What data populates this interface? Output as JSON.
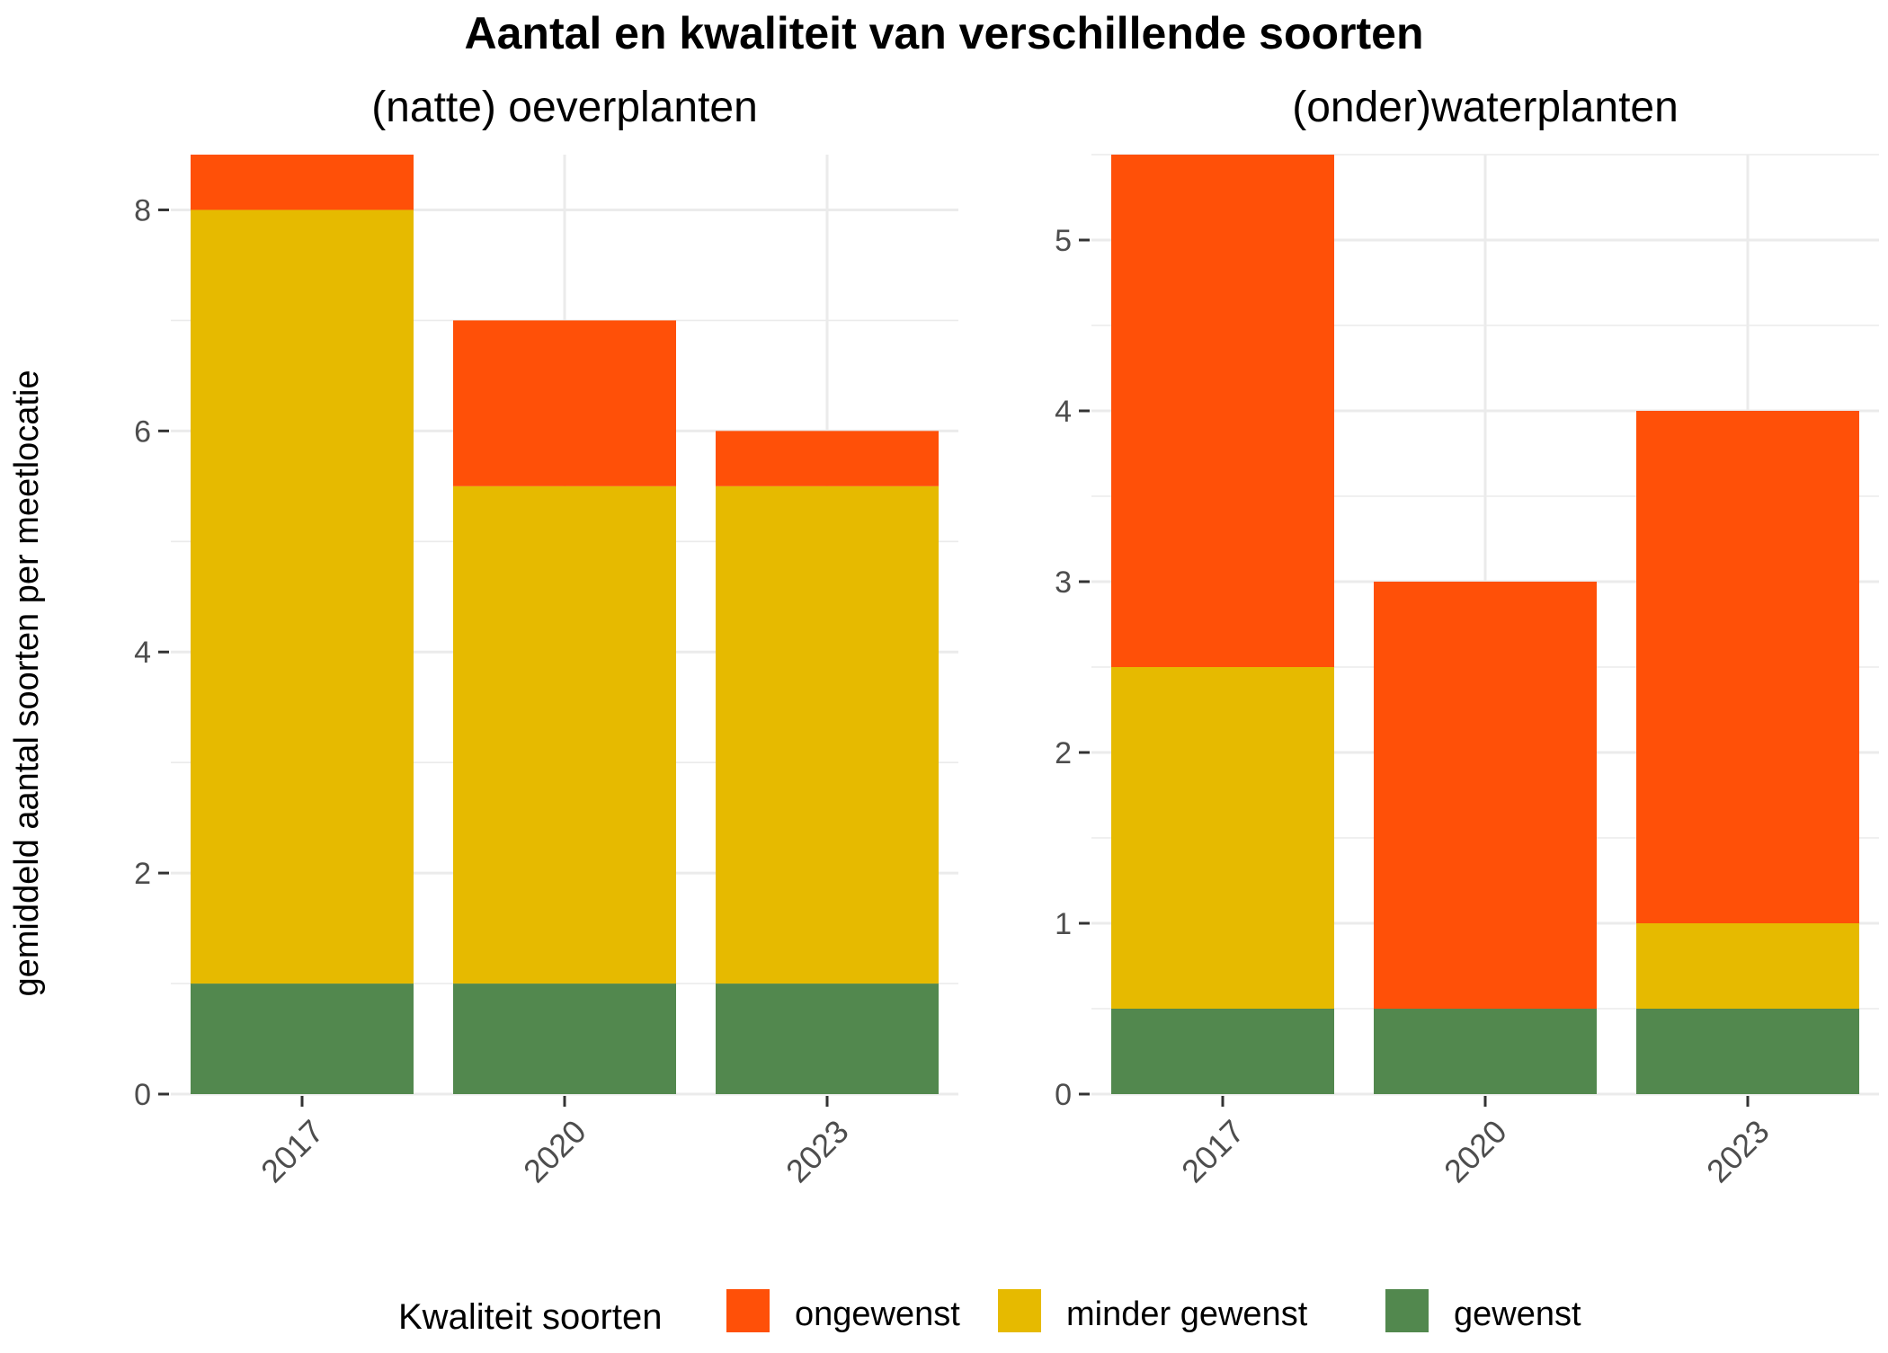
{
  "title": "Aantal en kwaliteit van verschillende soorten",
  "ylabel": "gemiddeld aantal soorten per meetlocatie",
  "legend": {
    "title": "Kwaliteit soorten",
    "position": "bottom",
    "items": [
      {
        "label": "ongewenst",
        "color": "#FF5008"
      },
      {
        "label": "minder gewenst",
        "color": "#E6BA00"
      },
      {
        "label": "gewenst",
        "color": "#52884E"
      }
    ]
  },
  "chart_data": [
    {
      "type": "bar",
      "stacked": true,
      "title": "(natte) oeverplanten",
      "categories": [
        "2017",
        "2020",
        "2023"
      ],
      "series": [
        {
          "name": "gewenst",
          "color": "#52884E",
          "values": [
            1,
            1,
            1
          ]
        },
        {
          "name": "minder gewenst",
          "color": "#E6BA00",
          "values": [
            7,
            4.5,
            4.5
          ]
        },
        {
          "name": "ongewenst",
          "color": "#FF5008",
          "values": [
            0.5,
            1.5,
            0.5
          ]
        }
      ],
      "ylim": [
        0,
        8.5
      ],
      "yticks": [
        0,
        2,
        4,
        6,
        8
      ],
      "grid": true
    },
    {
      "type": "bar",
      "stacked": true,
      "title": "(onder)waterplanten",
      "categories": [
        "2017",
        "2020",
        "2023"
      ],
      "series": [
        {
          "name": "gewenst",
          "color": "#52884E",
          "values": [
            0.5,
            0.5,
            0.5
          ]
        },
        {
          "name": "minder gewenst",
          "color": "#E6BA00",
          "values": [
            2,
            0,
            0.5
          ]
        },
        {
          "name": "ongewenst",
          "color": "#FF5008",
          "values": [
            3,
            2.5,
            3
          ]
        }
      ],
      "ylim": [
        0,
        5.5
      ],
      "yticks": [
        0,
        1,
        2,
        3,
        4,
        5
      ],
      "grid": true
    }
  ]
}
